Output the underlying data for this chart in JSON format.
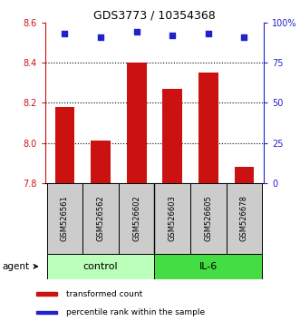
{
  "title": "GDS3773 / 10354368",
  "samples": [
    "GSM526561",
    "GSM526562",
    "GSM526602",
    "GSM526603",
    "GSM526605",
    "GSM526678"
  ],
  "transformed_counts": [
    8.18,
    8.01,
    8.4,
    8.27,
    8.35,
    7.88
  ],
  "percentile_ranks": [
    93,
    91,
    94,
    92,
    93,
    91
  ],
  "ylim_left": [
    7.8,
    8.6
  ],
  "ylim_right": [
    0,
    100
  ],
  "yticks_left": [
    7.8,
    8.0,
    8.2,
    8.4,
    8.6
  ],
  "yticks_right": [
    0,
    25,
    50,
    75,
    100
  ],
  "ytick_labels_right": [
    "0",
    "25",
    "50",
    "75",
    "100%"
  ],
  "grid_values": [
    8.0,
    8.2,
    8.4
  ],
  "bar_color": "#cc1111",
  "dot_color": "#2222cc",
  "groups": [
    {
      "label": "control",
      "color": "#bbffbb"
    },
    {
      "label": "IL-6",
      "color": "#44dd44"
    }
  ],
  "agent_label": "agent",
  "legend_items": [
    {
      "label": "transformed count",
      "color": "#cc1111"
    },
    {
      "label": "percentile rank within the sample",
      "color": "#2222cc"
    }
  ],
  "bar_width": 0.55,
  "left_axis_color": "#cc1111",
  "right_axis_color": "#2222cc",
  "sample_box_color": "#cccccc",
  "tick_fontsize": 7,
  "title_fontsize": 9
}
